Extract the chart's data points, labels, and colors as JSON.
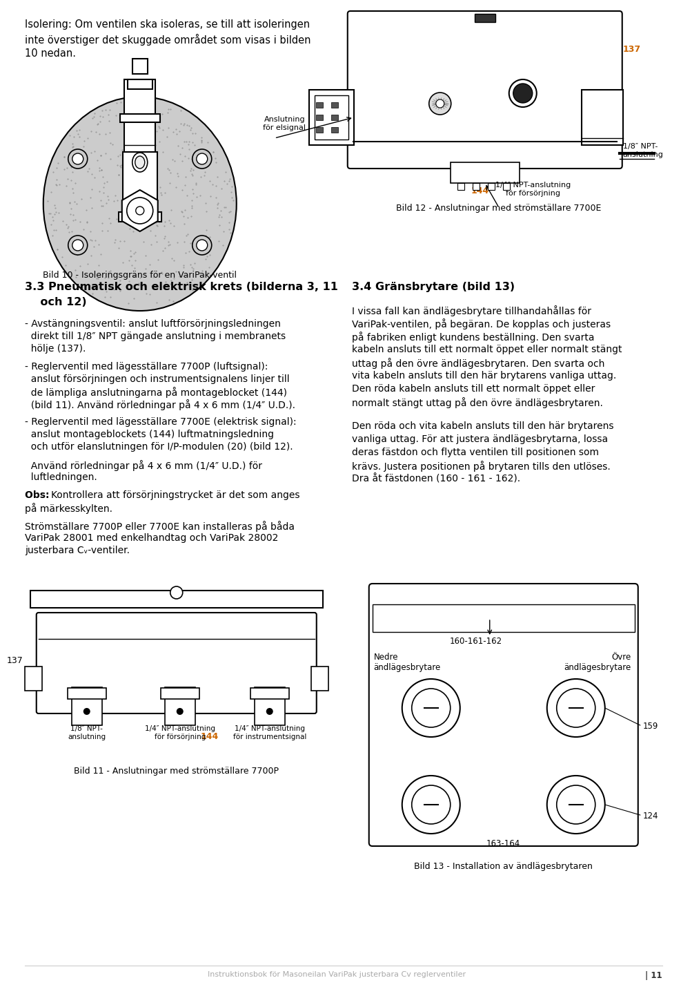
{
  "bg_color": "#ffffff",
  "text_color": "#000000",
  "gray_text": "#aaaaaa",
  "page_num": "11",
  "footer_text": "Instruktionsbok för Masoneilan VariPak justerbara Cv reglerventiler",
  "top_text_lines": [
    "Isolering: Om ventilen ska isoleras, se till att isoleringen",
    "inte överstiger det skuggade området som visas i bilden",
    "10 nedan."
  ],
  "fig10_caption": "Bild 10 - Isoleringsgräns för en VariPak-ventil",
  "section_heading_line1": "3.3 Pneumatisk och elektrisk krets (bilderna 3, 11",
  "section_heading_line2": "    och 12)",
  "bullet1_line1": "- Avstängningsventil: anslut luftförsörjningsledningen",
  "bullet1_line2": "  direkt till 1/8″ NPT gängade anslutning i membranets",
  "bullet1_line3": "  hölje (137).",
  "bullet2_line1": "- Reglerventil med lägesställare 7700P (luftsignal):",
  "bullet2_line2": "  anslut försörjningen och instrumentsignalens linjer till",
  "bullet2_line3": "  de lämpliga anslutningarna på montageblocket (144)",
  "bullet2_line4": "  (bild 11). Använd rörledningar på 4 x 6 mm (1/4″ U.D.).",
  "bullet3_line1": "- Reglerventil med lägesställare 7700E (elektrisk signal):",
  "bullet3_line2": "  anslut montageblockets (144) luftmatningsledning",
  "bullet3_line3": "  och utför elanslutningen för I/P-modulen (20) (bild 12).",
  "indent_line1": "  Använd rörledningar på 4 x 6 mm (1/4″ U.D.) för",
  "indent_line2": "  luftledningen.",
  "obs_bold": "Obs: ",
  "obs_rest": "Kontrollera att försörjningstrycket är det som anges",
  "obs_line2": "på märkesskylten.",
  "strom_line1": "Strömställare 7700P eller 7700E kan installeras på båda",
  "strom_line2": "VariPak 28001 med enkelhandtag och VariPak 28002",
  "strom_line3": "justerbara Cᵥ-ventiler.",
  "fig11_caption": "Bild 11 - Anslutningar med strömställare 7700P",
  "fig11_label137": "137",
  "fig11_label144": "144",
  "fig11_npt18": "1/8″ NPT-\nanslutning",
  "fig11_npt14_supply": "1/4″ NPT-anslutning\nför försörjning",
  "fig11_npt14_instr": "1/4″ NPT-anslutning\nför instrumentsignal",
  "fig12_caption": "Bild 12 - Anslutningar med strömställare 7700E",
  "fig12_label137": "137",
  "fig12_label144": "144",
  "fig12_elsignal": "Anslutning\nför elsignal",
  "fig12_forsorjning": "1/4″ NPT-anslutning\nför försörjning",
  "fig12_npt18": "1/8″ NPT-\nanslutning",
  "section34_heading": "3.4 Gränsbrytare (bild 13)",
  "rp1_lines": [
    "I vissa fall kan ändlägesbrytare tillhandahållas för",
    "VariPak-ventilen, på begäran. De kopplas och justeras",
    "på fabriken enligt kundens beställning. Den svarta",
    "kabeln ansluts till ett normalt öppet eller normalt stängt",
    "uttag på den övre ändlägesbrytaren. Den svarta och",
    "vita kabeln ansluts till den här brytarens vanliga uttag.",
    "Den röda kabeln ansluts till ett normalt öppet eller",
    "normalt stängt uttag på den övre ändlägesbrytaren."
  ],
  "rp2_lines": [
    "Den röda och vita kabeln ansluts till den här brytarens",
    "vanliga uttag. För att justera ändlägesbrytarna, lossa",
    "deras fästdon och flytta ventilen till positionen som",
    "krävs. Justera positionen på brytaren tills den utlöses.",
    "Dra åt fästdonen (160 - 161 - 162)."
  ],
  "fig13_caption": "Bild 13 - Installation av ändlägesbrytaren",
  "fig13_nedre": "Nedre\nändlägesbrytare",
  "fig13_ovre": "Övre\nändlägesbrytare",
  "fig13_160": "160-161-162",
  "fig13_159": "159",
  "fig13_124": "124",
  "fig13_163": "163-164"
}
